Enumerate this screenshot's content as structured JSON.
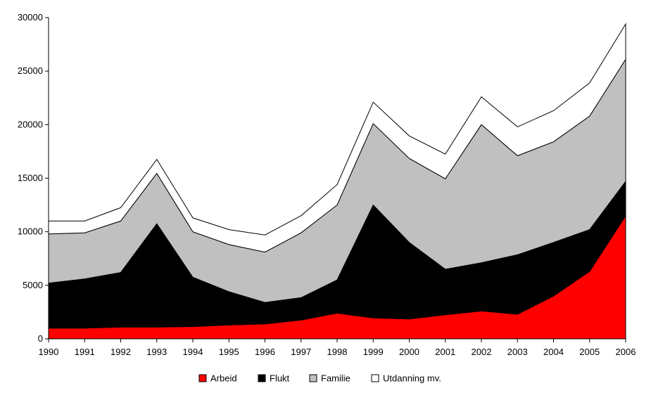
{
  "chart_data": {
    "type": "area",
    "stacked": true,
    "title": "",
    "xlabel": "",
    "ylabel": "",
    "x": [
      "1990",
      "1991",
      "1992",
      "1993",
      "1994",
      "1995",
      "1996",
      "1997",
      "1998",
      "1999",
      "2000",
      "2001",
      "2002",
      "2003",
      "2004",
      "2005",
      "2006"
    ],
    "ylim": [
      0,
      30000
    ],
    "yticks": [
      0,
      5000,
      10000,
      15000,
      20000,
      25000,
      30000
    ],
    "grid": false,
    "legend_position": "bottom",
    "series": [
      {
        "name": "Arbeid",
        "color": "#ff0000",
        "values": [
          1000,
          1000,
          1100,
          1100,
          1150,
          1300,
          1400,
          1750,
          2400,
          1950,
          1850,
          2250,
          2600,
          2300,
          4000,
          6300,
          11500
        ]
      },
      {
        "name": "Flukt",
        "color": "#000000",
        "values": [
          4200,
          4600,
          5100,
          9650,
          4600,
          3100,
          2000,
          2100,
          3100,
          10550,
          7150,
          4250,
          4500,
          5550,
          5000,
          3900,
          3200
        ]
      },
      {
        "name": "Familie",
        "color": "#c0c0c0",
        "values": [
          4600,
          4300,
          4800,
          4700,
          4250,
          4400,
          4700,
          6050,
          7000,
          7600,
          7850,
          8450,
          12900,
          9250,
          9400,
          10600,
          11400
        ]
      },
      {
        "name": "Utdanning mv.",
        "color": "#ffffff",
        "values": [
          1200,
          1100,
          1250,
          1300,
          1300,
          1400,
          1600,
          1600,
          1900,
          2000,
          2100,
          2300,
          2600,
          2700,
          2900,
          3100,
          3300
        ]
      }
    ]
  }
}
